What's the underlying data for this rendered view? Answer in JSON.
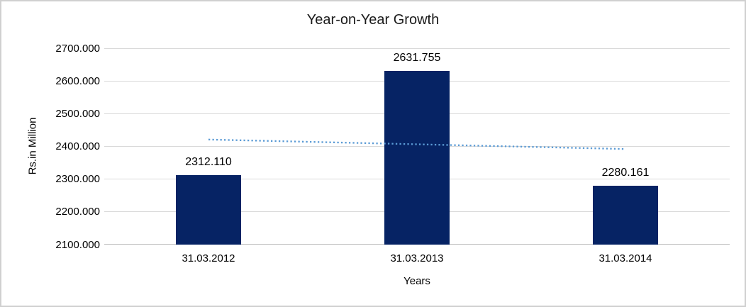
{
  "chart_data": {
    "type": "bar",
    "title": "Year-on-Year Growth",
    "xlabel": "Years",
    "ylabel": "Rs.in Million",
    "categories": [
      "31.03.2012",
      "31.03.2013",
      "31.03.2014"
    ],
    "values": [
      2312.11,
      2631.755,
      2280.161
    ],
    "data_labels": [
      "2312.110",
      "2631.755",
      "2280.161"
    ],
    "ylim": [
      2100,
      2700
    ],
    "ytick_step": 100,
    "ytick_labels": [
      "2100.000",
      "2200.000",
      "2300.000",
      "2400.000",
      "2500.000",
      "2600.000",
      "2700.000"
    ],
    "grid": true,
    "legend": "none",
    "trendline": {
      "type": "linear",
      "style": "dotted",
      "start_value": 2421,
      "end_value": 2392
    },
    "colors": {
      "bar": "#062364",
      "trendline": "#5b9bd5",
      "gridline": "#d9d9d9",
      "axis_line": "#bfbfbf",
      "text": "#000000"
    }
  }
}
